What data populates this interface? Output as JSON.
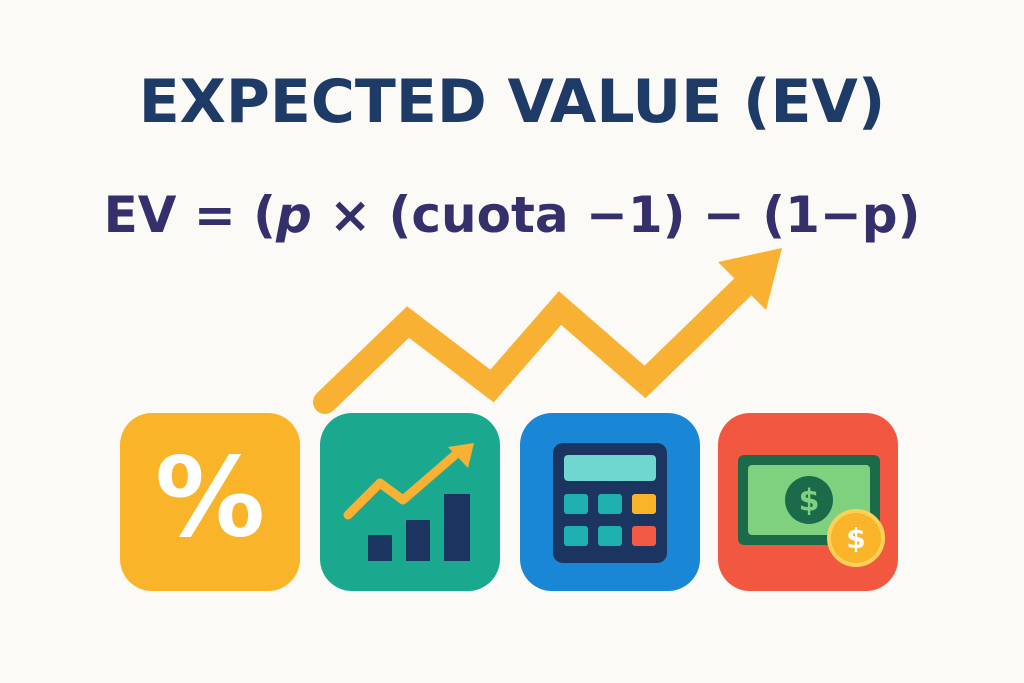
{
  "header": {
    "title": "EXPECTED VALUE (EV)"
  },
  "formula": {
    "parts": [
      "EV = (",
      "p",
      " × (cuota −1) − (1−p)"
    ]
  },
  "icons": {
    "percent_symbol": "%",
    "bill_symbol": "$",
    "coin_symbol": "$"
  }
}
